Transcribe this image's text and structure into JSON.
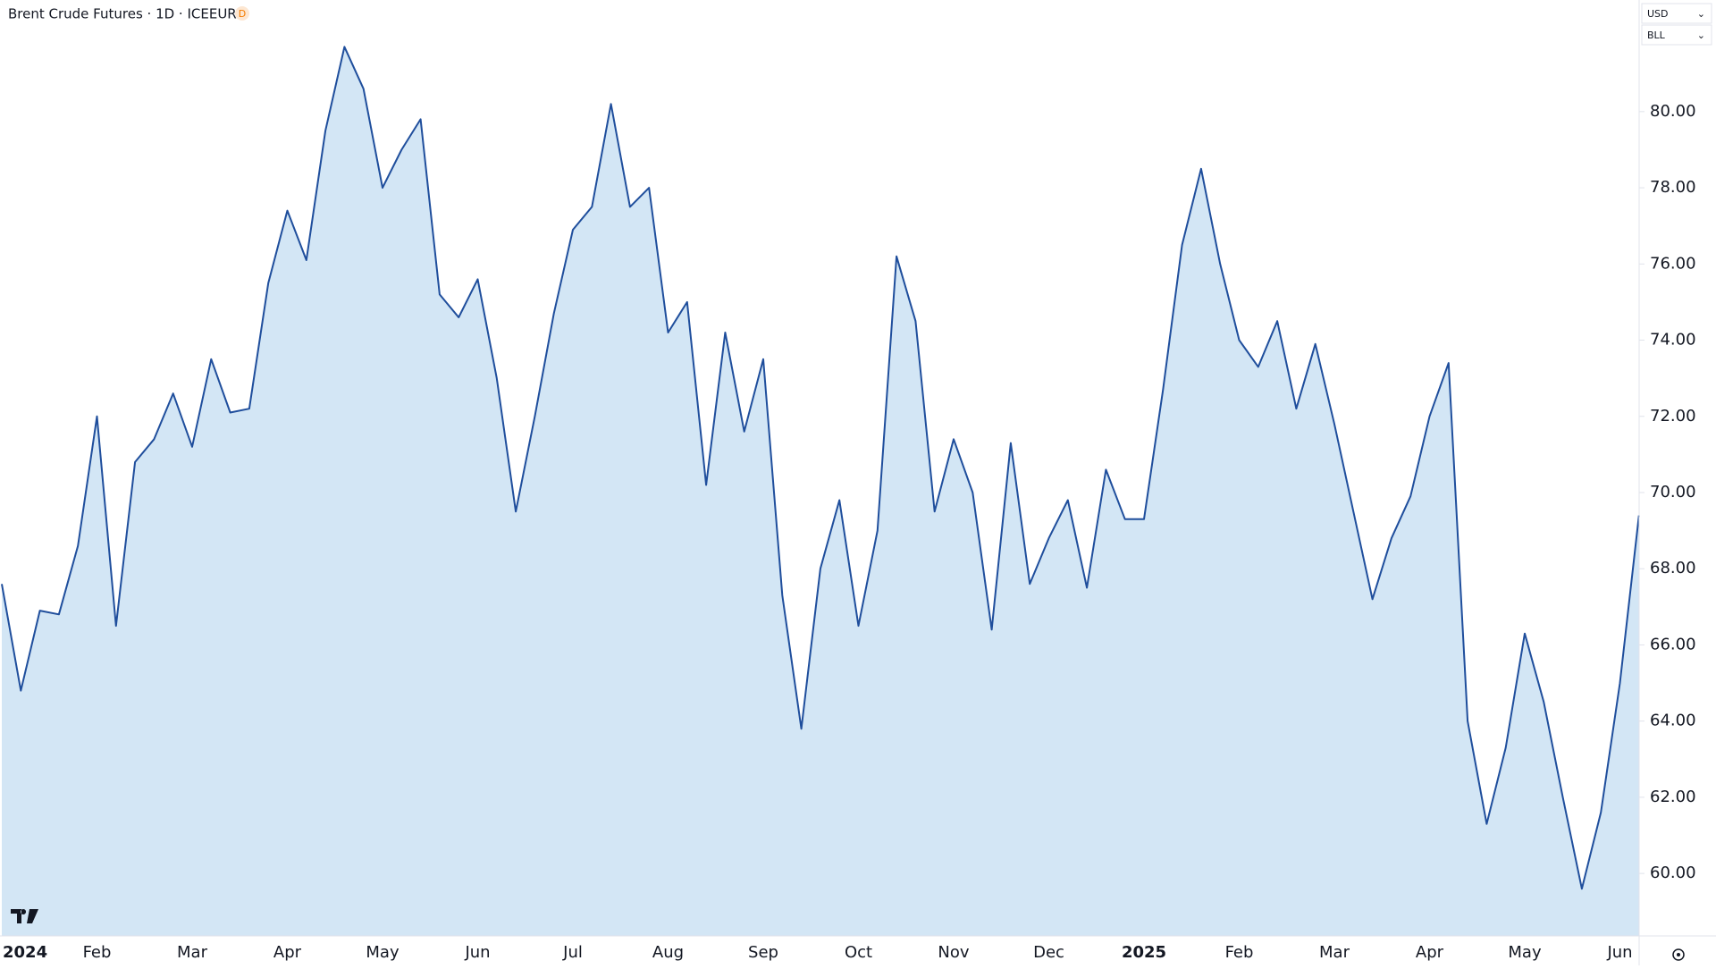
{
  "chart_data": {
    "type": "area",
    "title": "Brent Crude Futures · 1D · ICEEUR",
    "badge": "D",
    "currency": "USD",
    "unit": "BLL",
    "color": "#1f4e9c",
    "fill": "#d3e6f5",
    "ylim": [
      58.36,
      82.93
    ],
    "yticks": [
      {
        "value": 60,
        "label": "60.00"
      },
      {
        "value": 62,
        "label": "62.00"
      },
      {
        "value": 64,
        "label": "64.00"
      },
      {
        "value": 66,
        "label": "66.00"
      },
      {
        "value": 68,
        "label": "68.00"
      },
      {
        "value": 70,
        "label": "70.00"
      },
      {
        "value": 72,
        "label": "72.00"
      },
      {
        "value": 74,
        "label": "74.00"
      },
      {
        "value": 76,
        "label": "76.00"
      },
      {
        "value": 78,
        "label": "78.00"
      },
      {
        "value": 80,
        "label": "80.00"
      }
    ],
    "categories": [
      "2024",
      null,
      null,
      null,
      null,
      "Feb",
      null,
      null,
      null,
      null,
      "Mar",
      null,
      null,
      null,
      null,
      "Apr",
      null,
      null,
      null,
      null,
      "May",
      null,
      null,
      null,
      null,
      "Jun",
      null,
      null,
      null,
      null,
      "Jul",
      null,
      null,
      null,
      null,
      "Aug",
      null,
      null,
      null,
      null,
      "Sep",
      null,
      null,
      null,
      null,
      "Oct",
      null,
      null,
      null,
      null,
      "Nov",
      null,
      null,
      null,
      null,
      "Dec",
      null,
      null,
      null,
      null,
      "2025",
      null,
      null,
      null,
      null,
      "Feb",
      null,
      null,
      null,
      null,
      "Mar",
      null,
      null,
      null,
      null,
      "Apr",
      null,
      null,
      null,
      null,
      "May",
      null,
      null,
      null,
      null,
      "Jun",
      null
    ],
    "values": [
      67.6,
      64.8,
      66.9,
      66.8,
      68.6,
      72.0,
      66.5,
      70.8,
      71.4,
      72.6,
      71.2,
      73.5,
      72.1,
      72.2,
      75.5,
      77.4,
      76.1,
      79.5,
      81.7,
      80.6,
      78.0,
      79.0,
      79.8,
      75.2,
      74.6,
      75.6,
      73.0,
      69.5,
      72.0,
      74.7,
      76.9,
      77.5,
      80.2,
      77.5,
      78.0,
      74.2,
      75.0,
      70.2,
      74.2,
      71.6,
      73.5,
      67.3,
      63.8,
      68.0,
      69.8,
      66.5,
      69.0,
      76.2,
      74.5,
      69.5,
      71.4,
      70.0,
      66.4,
      71.3,
      67.6,
      68.8,
      69.8,
      67.5,
      70.6,
      69.3,
      69.3,
      72.7,
      76.5,
      78.5,
      76.0,
      74.0,
      73.3,
      74.5,
      72.2,
      73.9,
      71.8,
      69.5,
      67.2,
      68.8,
      69.9,
      72.0,
      73.4,
      64.0,
      61.3,
      63.3,
      66.3,
      64.5,
      62.0,
      59.6,
      61.6,
      65.0,
      69.4
    ]
  }
}
